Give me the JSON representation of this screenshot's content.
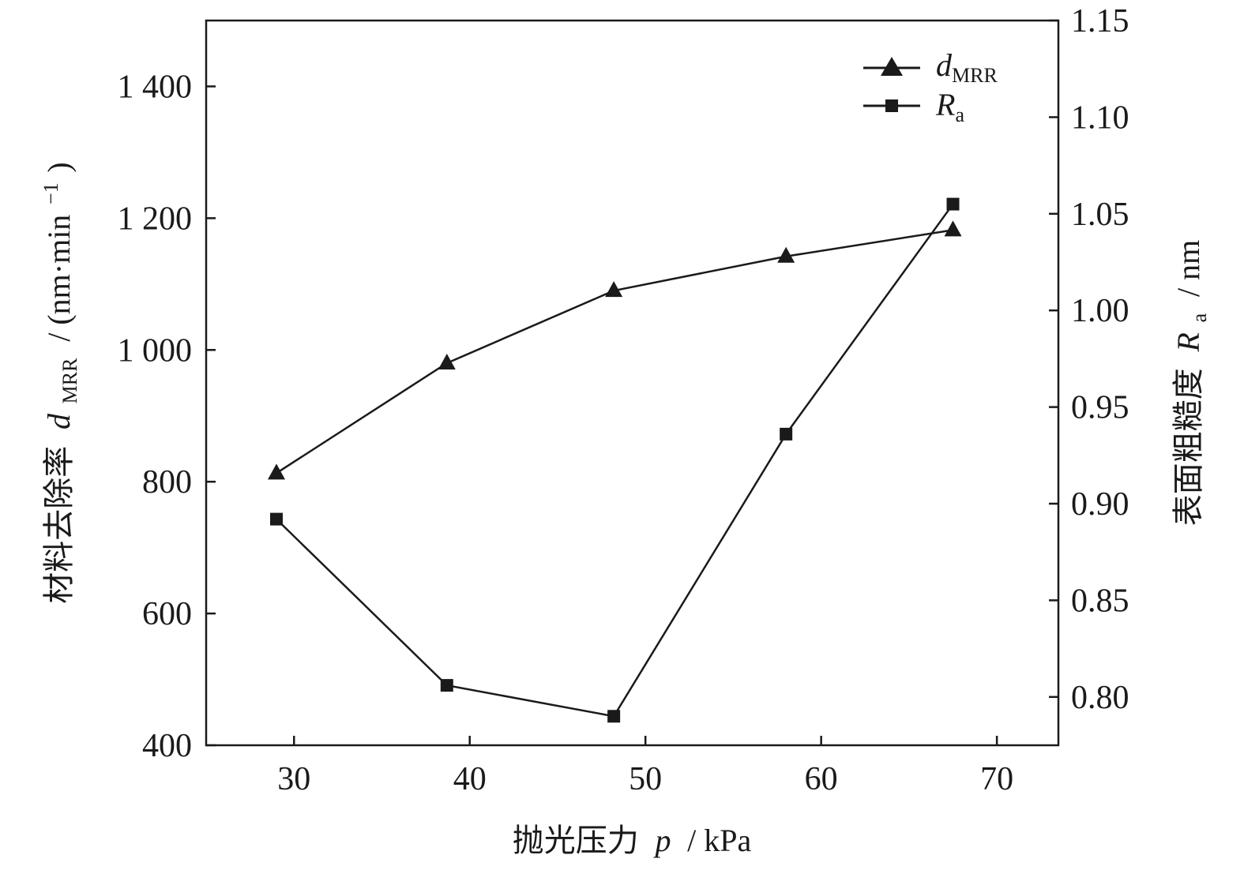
{
  "chart_data": {
    "type": "line",
    "x": [
      29,
      38.7,
      48.2,
      58,
      67.5
    ],
    "xlim": [
      25,
      73.5
    ],
    "xticks": [
      "30",
      "40",
      "50",
      "60",
      "70"
    ],
    "xlabel": {
      "text": "抛光压力",
      "var": "p",
      "unit": "/ kPa"
    },
    "ylabel_left": {
      "text": "材料去除率",
      "var": "d",
      "sub": "MRR",
      "unit": "/ (nm·min",
      "sup": "−1",
      "close": ")"
    },
    "ylabel_right": {
      "text": "表面粗糙度",
      "var": "R",
      "sub": "a",
      "unit": "/ nm"
    },
    "ylim_left": [
      400,
      1500
    ],
    "yticks_left": [
      "400",
      "600",
      "800",
      "1 000",
      "1 200",
      "1 400"
    ],
    "ylim_right": [
      0.775,
      1.15
    ],
    "yticks_right": [
      "0.80",
      "0.85",
      "0.90",
      "0.95",
      "1.00",
      "1.05",
      "1.10",
      "1.15"
    ],
    "grid": false,
    "legend_position": "top-right",
    "series": [
      {
        "name": "d",
        "name_sub": "MRR",
        "axis": "left",
        "marker": "triangle",
        "values": [
          813,
          980,
          1090,
          1142,
          1182
        ]
      },
      {
        "name": "R",
        "name_sub": "a",
        "axis": "right",
        "marker": "square",
        "values": [
          0.892,
          0.806,
          0.79,
          0.936,
          1.055
        ]
      }
    ],
    "colors": {
      "line": "#1a1a1a"
    }
  }
}
